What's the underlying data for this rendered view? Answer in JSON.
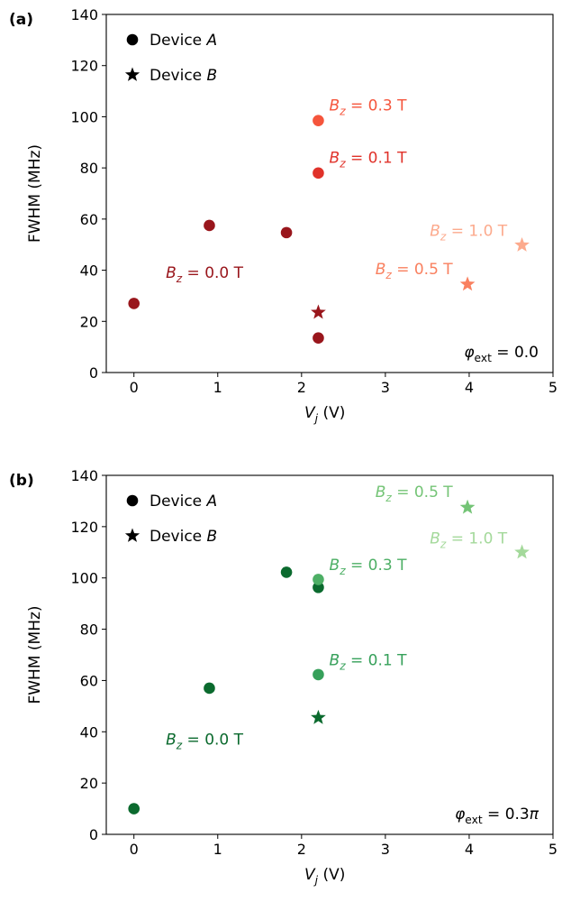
{
  "chart_data": [
    {
      "panel_label": "(a)",
      "type": "scatter",
      "xlabel": "V_j (V)",
      "ylabel": "FWHM (MHz)",
      "xlim": [
        -0.33,
        5
      ],
      "ylim": [
        0,
        140
      ],
      "xticks": [
        0,
        1,
        2,
        3,
        4,
        5
      ],
      "yticks": [
        0,
        20,
        40,
        60,
        80,
        100,
        120,
        140
      ],
      "grid": false,
      "legend": {
        "placement": "top-left",
        "entries": [
          {
            "marker": "circle",
            "label": "Device A"
          },
          {
            "marker": "star",
            "label": "Device B"
          }
        ]
      },
      "phi_label": "φext = 0.0",
      "colors": {
        "0.0": "#99161c",
        "0.1": "#e0322a",
        "0.3": "#f5553c",
        "0.5": "#f9805f",
        "1.0": "#fcaa8d"
      },
      "series": [
        {
          "name": "Bz = 0.0 T",
          "color": "#99161c",
          "points": [
            {
              "x": 0,
              "y": 27,
              "marker": "circle"
            },
            {
              "x": 0.9,
              "y": 57.5,
              "marker": "circle"
            },
            {
              "x": 1.82,
              "y": 54.7,
              "marker": "circle"
            },
            {
              "x": 2.2,
              "y": 13.5,
              "marker": "circle"
            },
            {
              "x": 2.2,
              "y": 23.5,
              "marker": "star"
            }
          ]
        },
        {
          "name": "Bz = 0.1 T",
          "color": "#e0322a",
          "points": [
            {
              "x": 2.2,
              "y": 78,
              "marker": "circle"
            }
          ]
        },
        {
          "name": "Bz = 0.3 T",
          "color": "#f5553c",
          "points": [
            {
              "x": 2.2,
              "y": 98.5,
              "marker": "circle"
            }
          ]
        },
        {
          "name": "Bz = 0.5 T",
          "color": "#f9805f",
          "points": [
            {
              "x": 3.98,
              "y": 34.5,
              "marker": "star"
            }
          ]
        },
        {
          "name": "Bz = 1.0 T",
          "color": "#fcaa8d",
          "points": [
            {
              "x": 4.63,
              "y": 49.8,
              "marker": "star"
            }
          ]
        }
      ],
      "annotations": [
        {
          "series": "Bz = 0.0 T",
          "text": "B_z = 0.0 T",
          "color": "#99161c",
          "x": 0.38,
          "y": 37
        },
        {
          "series": "Bz = 0.1 T",
          "text": "B_z = 0.1 T",
          "color": "#e0322a",
          "x": 2.33,
          "y": 82
        },
        {
          "series": "Bz = 0.3 T",
          "text": "B_z = 0.3 T",
          "color": "#f5553c",
          "x": 2.33,
          "y": 102.5
        },
        {
          "series": "Bz = 0.5 T",
          "text": "B_z = 0.5 T",
          "color": "#f9805f",
          "x": 2.88,
          "y": 38.5
        },
        {
          "series": "Bz = 1.0 T",
          "text": "B_z = 1.0 T",
          "color": "#fcaa8d",
          "x": 3.53,
          "y": 53.5
        }
      ]
    },
    {
      "panel_label": "(b)",
      "type": "scatter",
      "xlabel": "V_j (V)",
      "ylabel": "FWHM (MHz)",
      "xlim": [
        -0.33,
        5
      ],
      "ylim": [
        0,
        140
      ],
      "xticks": [
        0,
        1,
        2,
        3,
        4,
        5
      ],
      "yticks": [
        0,
        20,
        40,
        60,
        80,
        100,
        120,
        140
      ],
      "grid": false,
      "legend": {
        "placement": "top-left",
        "entries": [
          {
            "marker": "circle",
            "label": "Device A"
          },
          {
            "marker": "star",
            "label": "Device B"
          }
        ]
      },
      "phi_label": "φext = 0.3π",
      "colors": {
        "0.0": "#0b6a2e",
        "0.1": "#36a05a",
        "0.3": "#4daf65",
        "0.5": "#74c476",
        "1.0": "#a4d99b"
      },
      "series": [
        {
          "name": "Bz = 0.0 T",
          "color": "#0b6a2e",
          "points": [
            {
              "x": 0,
              "y": 10,
              "marker": "circle"
            },
            {
              "x": 0.9,
              "y": 57,
              "marker": "circle"
            },
            {
              "x": 1.82,
              "y": 102.2,
              "marker": "circle"
            },
            {
              "x": 2.2,
              "y": 96.3,
              "marker": "circle"
            },
            {
              "x": 2.2,
              "y": 45.5,
              "marker": "star"
            }
          ]
        },
        {
          "name": "Bz = 0.1 T",
          "color": "#36a05a",
          "points": [
            {
              "x": 2.2,
              "y": 62.3,
              "marker": "circle"
            }
          ]
        },
        {
          "name": "Bz = 0.3 T",
          "color": "#4daf65",
          "points": [
            {
              "x": 2.2,
              "y": 99.4,
              "marker": "circle"
            }
          ]
        },
        {
          "name": "Bz = 0.5 T",
          "color": "#74c476",
          "points": [
            {
              "x": 3.98,
              "y": 127.5,
              "marker": "star"
            }
          ]
        },
        {
          "name": "Bz = 1.0 T",
          "color": "#a4d99b",
          "points": [
            {
              "x": 4.63,
              "y": 110,
              "marker": "star"
            }
          ]
        }
      ],
      "annotations": [
        {
          "series": "Bz = 0.0 T",
          "text": "B_z = 0.0 T",
          "color": "#0b6a2e",
          "x": 0.38,
          "y": 35
        },
        {
          "series": "Bz = 0.1 T",
          "text": "B_z = 0.1 T",
          "color": "#36a05a",
          "x": 2.33,
          "y": 66
        },
        {
          "series": "Bz = 0.3 T",
          "text": "B_z = 0.3 T",
          "color": "#4daf65",
          "x": 2.33,
          "y": 103
        },
        {
          "series": "Bz = 0.5 T",
          "text": "B_z = 0.5 T",
          "color": "#74c476",
          "x": 2.88,
          "y": 131.5
        },
        {
          "series": "Bz = 1.0 T",
          "text": "B_z = 1.0 T",
          "color": "#a4d99b",
          "x": 3.53,
          "y": 113.5
        }
      ]
    }
  ]
}
